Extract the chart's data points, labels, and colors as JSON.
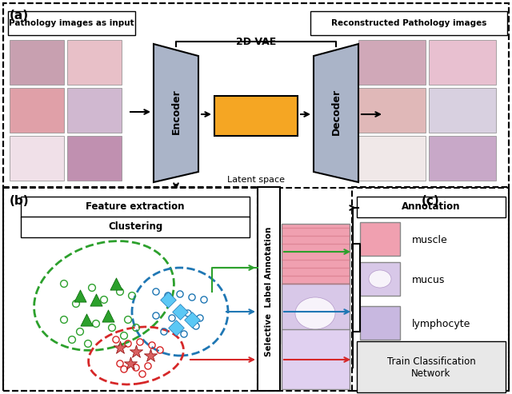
{
  "title_a": "(a)",
  "title_b": "(b)",
  "title_c": "(c)",
  "label_input": "Pathology images as input",
  "label_reconstructed": "Reconstructed Pathology images",
  "label_vae": "2D VAE",
  "label_encoder": "Encoder",
  "label_decoder": "Decoder",
  "label_latent": "Latent space",
  "label_feature": "Feature extraction",
  "label_clustering": "Clustering",
  "label_selective": "Selective  Label Annotation",
  "label_annotation": "Annotation",
  "label_muscle": "muscle",
  "label_mucus": "mucus",
  "label_lymphocyte": "lymphocyte",
  "label_train": "Train Classification\nNetwork",
  "color_green": "#2ca02c",
  "color_blue": "#1f77b4",
  "color_red": "#d62728",
  "color_encoder_fill": "#aab4c8",
  "color_latent_fill": "#f5a623",
  "color_border": "#000000",
  "color_dashed_border": "#555555"
}
